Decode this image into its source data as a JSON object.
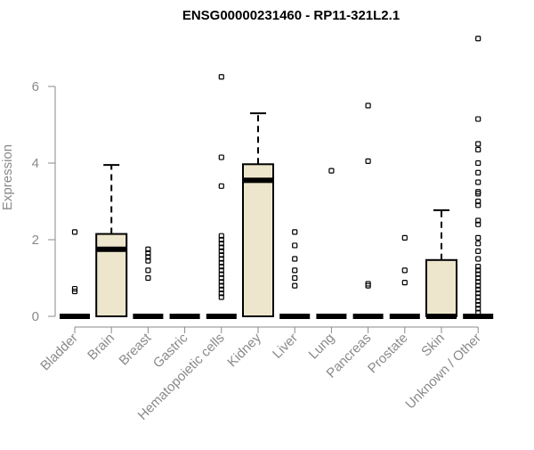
{
  "chart_data": {
    "type": "boxplot",
    "title": "ENSG00000231460 - RP11-321L2.1",
    "ylabel": "Expression",
    "xlabel": "",
    "ylim": [
      0,
      7.3
    ],
    "yticks": [
      0,
      2,
      4,
      6
    ],
    "box_fill": "#ede6cc",
    "grid": false,
    "categories": [
      "Bladder",
      "Brain",
      "Breast",
      "Gastric",
      "Hematopoietic cells",
      "Kidney",
      "Liver",
      "Lung",
      "Pancreas",
      "Prostate",
      "Skin",
      "Unknown / Other"
    ],
    "boxes": [
      {
        "category": "Bladder",
        "q1": 0,
        "median": 0,
        "q3": 0,
        "whisker_low": 0,
        "whisker_high": 0,
        "outliers": [
          2.2,
          0.72,
          0.65
        ]
      },
      {
        "category": "Brain",
        "q1": 0,
        "median": 1.75,
        "q3": 2.15,
        "whisker_low": 0,
        "whisker_high": 3.95,
        "outliers": []
      },
      {
        "category": "Breast",
        "q1": 0,
        "median": 0,
        "q3": 0,
        "whisker_low": 0,
        "whisker_high": 0,
        "outliers": [
          1.75,
          1.65,
          1.55,
          1.45,
          1.2,
          1.0
        ]
      },
      {
        "category": "Gastric",
        "q1": 0,
        "median": 0,
        "q3": 0,
        "whisker_low": 0,
        "whisker_high": 0,
        "outliers": []
      },
      {
        "category": "Hematopoietic cells",
        "q1": 0,
        "median": 0,
        "q3": 0,
        "whisker_low": 0,
        "whisker_high": 0,
        "outliers": [
          6.25,
          4.15,
          3.4,
          2.1,
          2.0,
          1.9,
          1.8,
          1.7,
          1.6,
          1.5,
          1.4,
          1.3,
          1.2,
          1.1,
          1.0,
          0.9,
          0.8,
          0.7,
          0.6,
          0.5
        ]
      },
      {
        "category": "Kidney",
        "q1": 0,
        "median": 3.55,
        "q3": 3.97,
        "whisker_low": 0,
        "whisker_high": 5.3,
        "outliers": []
      },
      {
        "category": "Liver",
        "q1": 0,
        "median": 0,
        "q3": 0,
        "whisker_low": 0,
        "whisker_high": 0,
        "outliers": [
          2.2,
          1.85,
          1.5,
          1.2,
          1.0,
          0.8
        ]
      },
      {
        "category": "Lung",
        "q1": 0,
        "median": 0,
        "q3": 0,
        "whisker_low": 0,
        "whisker_high": 0,
        "outliers": [
          3.8
        ]
      },
      {
        "category": "Pancreas",
        "q1": 0,
        "median": 0,
        "q3": 0,
        "whisker_low": 0,
        "whisker_high": 0,
        "outliers": [
          5.5,
          4.05,
          0.85,
          0.8
        ]
      },
      {
        "category": "Prostate",
        "q1": 0,
        "median": 0,
        "q3": 0,
        "whisker_low": 0,
        "whisker_high": 0,
        "outliers": [
          2.05,
          1.2,
          0.88
        ]
      },
      {
        "category": "Skin",
        "q1": 0,
        "median": 0,
        "q3": 1.47,
        "whisker_low": 0,
        "whisker_high": 2.77,
        "outliers": []
      },
      {
        "category": "Unknown / Other",
        "q1": 0,
        "median": 0,
        "q3": 0,
        "whisker_low": 0,
        "whisker_high": 0,
        "outliers": [
          7.25,
          5.15,
          4.5,
          4.35,
          4.0,
          3.75,
          3.5,
          3.25,
          3.2,
          3.0,
          2.9,
          2.5,
          2.4,
          2.05,
          1.9,
          1.7,
          1.5,
          1.3,
          1.2,
          1.1,
          1.0,
          0.9,
          0.8,
          0.7,
          0.6,
          0.5,
          0.4,
          0.3,
          0.2,
          0.1
        ]
      }
    ]
  }
}
